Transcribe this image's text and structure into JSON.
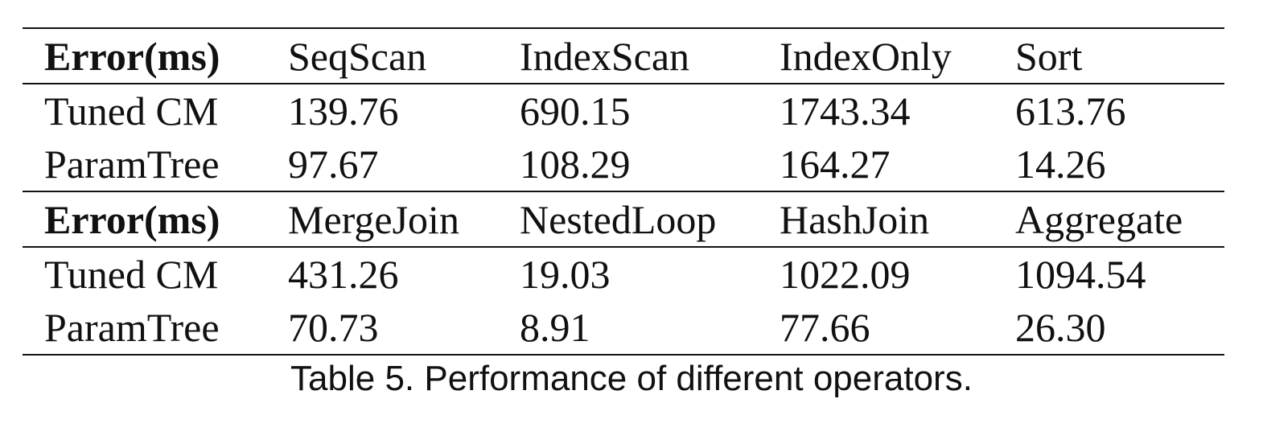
{
  "table": {
    "sections": [
      {
        "header": [
          "Error(ms)",
          "SeqScan",
          "IndexScan",
          "IndexOnly",
          "Sort"
        ],
        "rows": [
          [
            "Tuned CM",
            "139.76",
            "690.15",
            "1743.34",
            "613.76"
          ],
          [
            "ParamTree",
            "97.67",
            "108.29",
            "164.27",
            "14.26"
          ]
        ]
      },
      {
        "header": [
          "Error(ms)",
          "MergeJoin",
          "NestedLoop",
          "HashJoin",
          "Aggregate"
        ],
        "rows": [
          [
            "Tuned CM",
            "431.26",
            "19.03",
            "1022.09",
            "1094.54"
          ],
          [
            "ParamTree",
            "70.73",
            "8.91",
            "77.66",
            "26.30"
          ]
        ]
      }
    ]
  },
  "caption": "Table 5.  Performance of different operators."
}
